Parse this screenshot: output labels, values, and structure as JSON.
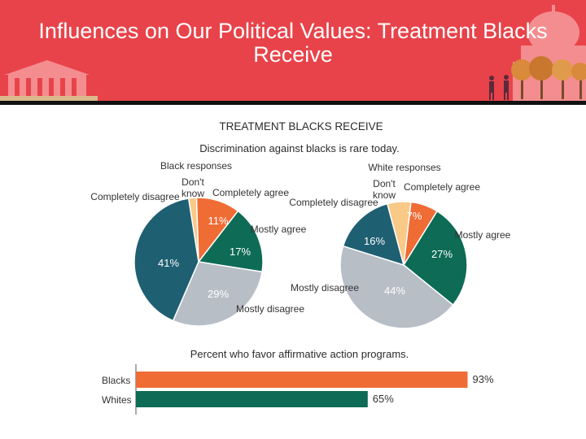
{
  "slide": {
    "title": "Influences on Our Political Values: Treatment Blacks Receive"
  },
  "figure": {
    "heading": "TREATMENT BLACKS RECEIVE"
  },
  "colors": {
    "header_bg": "#e8434a",
    "completely_agree": "#ef6c35",
    "mostly_agree": "#0e6b55",
    "mostly_disagree": "#b8bec6",
    "completely_disagree": "#1f5f72",
    "dont_know": "#f8c987"
  },
  "chart_data": [
    {
      "type": "pie",
      "title": "Discrimination against blacks is rare today.",
      "panel_label": "Black responses",
      "labels": [
        "Don't know",
        "Completely agree",
        "Mostly agree",
        "Mostly disagree",
        "Completely disagree"
      ],
      "values": [
        2,
        11,
        17,
        29,
        41
      ],
      "value_labels": [
        "2%",
        "11%",
        "17%",
        "29%",
        "41%"
      ]
    },
    {
      "type": "pie",
      "title": "Discrimination against blacks is rare today.",
      "panel_label": "White responses",
      "labels": [
        "Don't know",
        "Completely agree",
        "Mostly agree",
        "Mostly disagree",
        "Completely disagree"
      ],
      "values": [
        6,
        7,
        27,
        44,
        16
      ],
      "value_labels": [
        "6%",
        "7%",
        "27%",
        "44%",
        "16%"
      ]
    },
    {
      "type": "bar",
      "orientation": "horizontal",
      "title": "Percent who favor affirmative action programs.",
      "categories": [
        "Blacks",
        "Whites"
      ],
      "values": [
        93,
        65
      ],
      "value_labels": [
        "93%",
        "65%"
      ],
      "colors": [
        "#ef6c35",
        "#0e6b55"
      ],
      "xlim": [
        0,
        100
      ]
    }
  ]
}
